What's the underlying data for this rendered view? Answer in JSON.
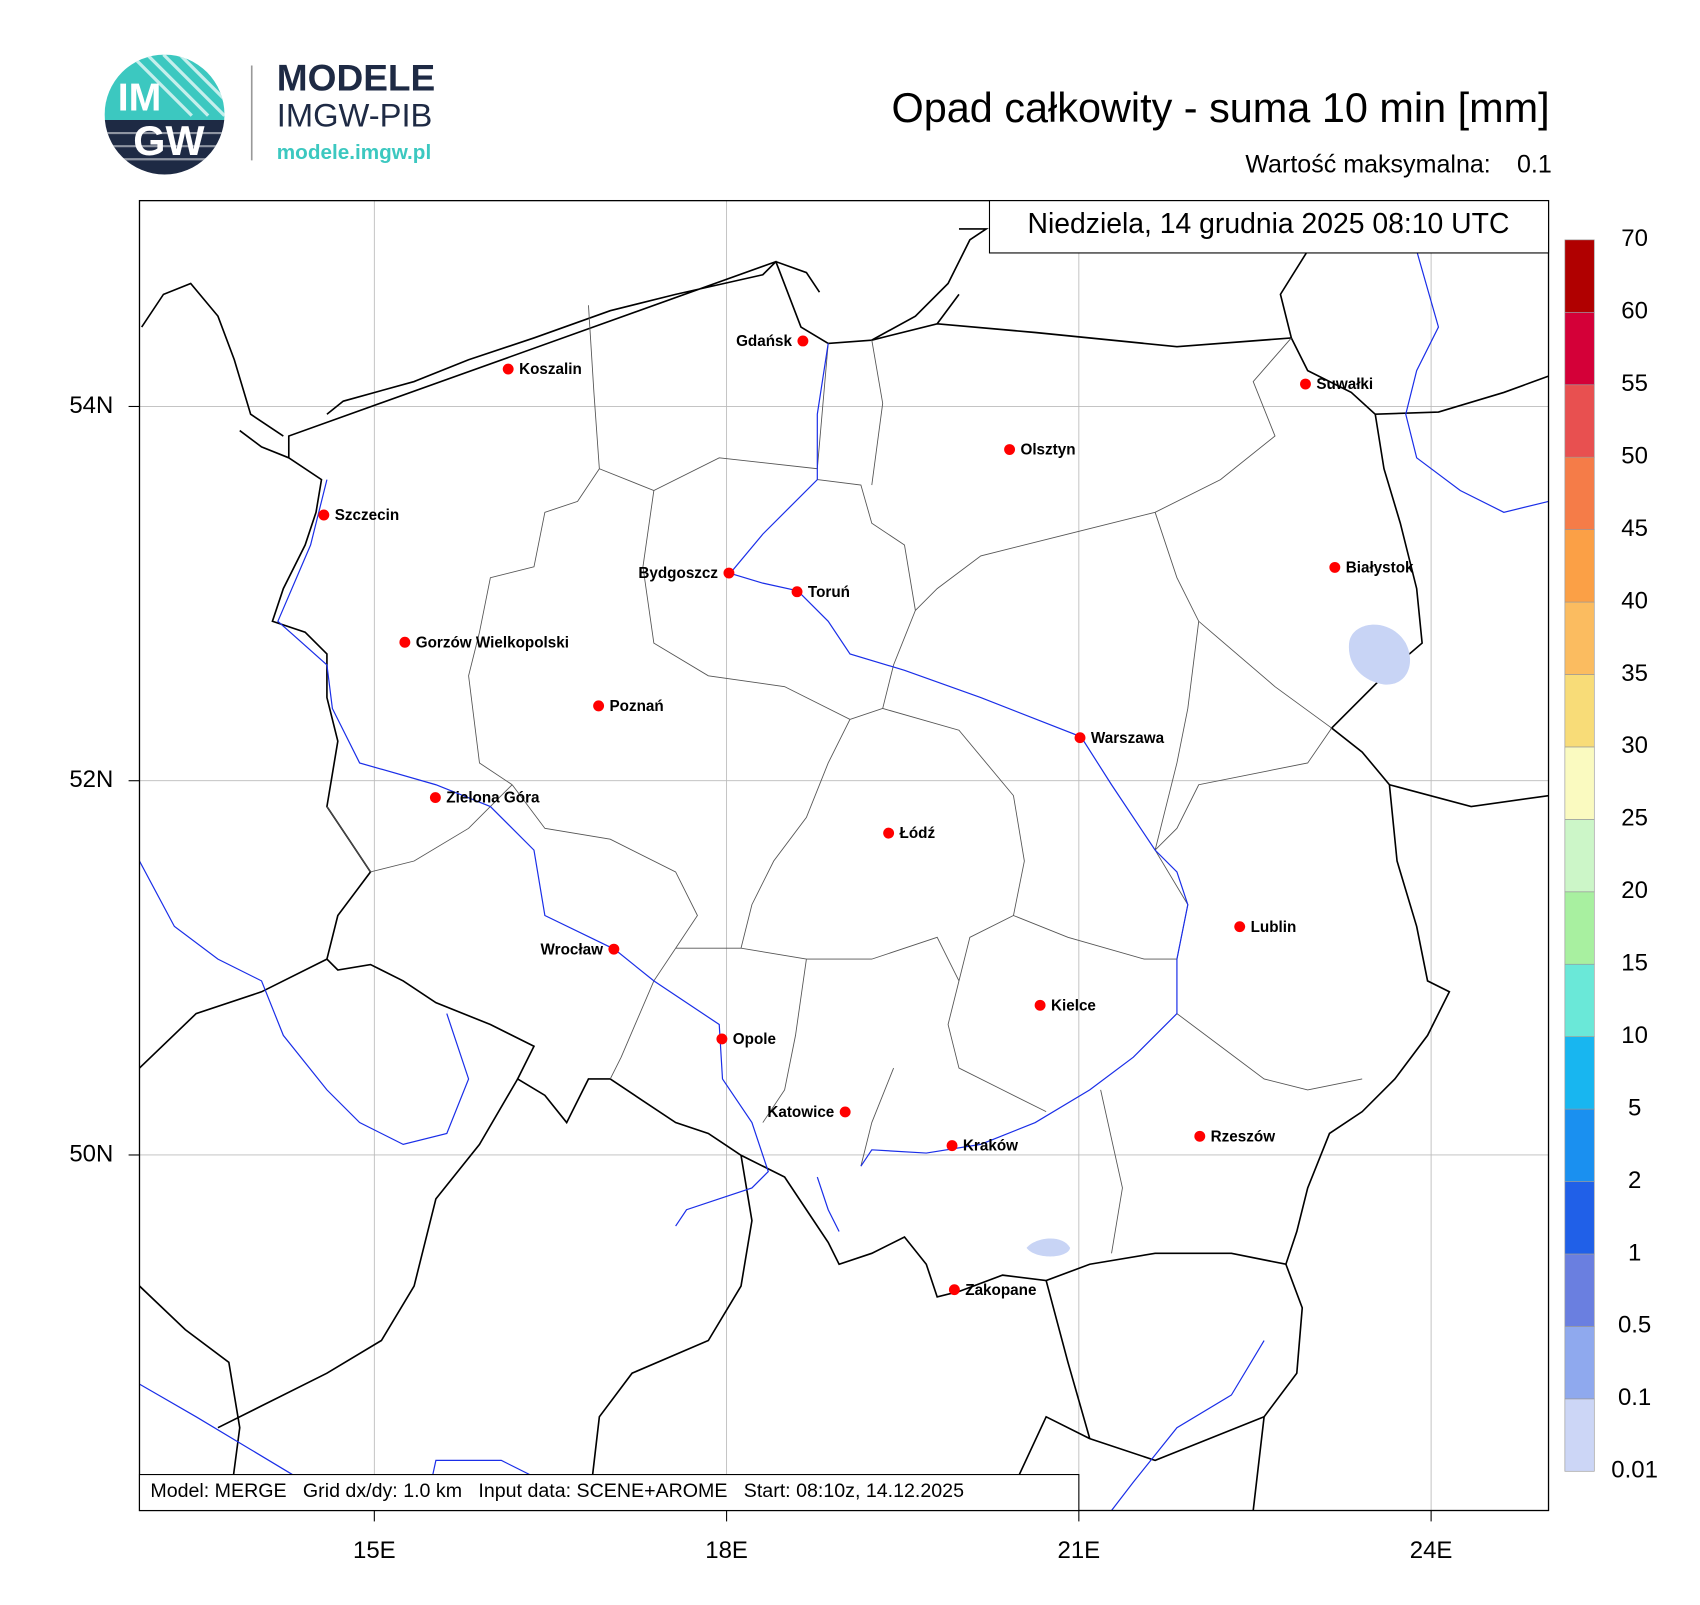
{
  "header": {
    "logo_top": "IM",
    "logo_bottom": "GW",
    "brand": "MODELE",
    "brand_sub": "IMGW-PIB",
    "url": "modele.imgw.pl",
    "title": "Opad całkowity - suma 10 min [mm]",
    "max_label": "Wartość maksymalna:",
    "max_value": 0.1,
    "date": "Niedziela, 14 grudnia 2025 08:10 UTC"
  },
  "map": {
    "xlim": [
      13,
      25
    ],
    "ylim": [
      48.1,
      55.1
    ],
    "xticks": [
      {
        "value": 15,
        "label": "15E"
      },
      {
        "value": 18,
        "label": "18E"
      },
      {
        "value": 21,
        "label": "21E"
      },
      {
        "value": 24,
        "label": "24E"
      }
    ],
    "yticks": [
      {
        "value": 50,
        "label": "50N"
      },
      {
        "value": 52,
        "label": "52N"
      },
      {
        "value": 54,
        "label": "54N"
      }
    ],
    "grid": true,
    "city_color": "#ff0000",
    "cities": [
      {
        "name": "Gdańsk",
        "lon": 18.65,
        "lat": 54.35,
        "side": "left"
      },
      {
        "name": "Koszalin",
        "lon": 16.14,
        "lat": 54.2,
        "side": "right"
      },
      {
        "name": "Suwałki",
        "lon": 22.93,
        "lat": 54.12,
        "side": "right"
      },
      {
        "name": "Olsztyn",
        "lon": 20.41,
        "lat": 53.77,
        "side": "right"
      },
      {
        "name": "Szczecin",
        "lon": 14.57,
        "lat": 53.42,
        "side": "right"
      },
      {
        "name": "Bydgoszcz",
        "lon": 18.02,
        "lat": 53.11,
        "side": "left"
      },
      {
        "name": "Toruń",
        "lon": 18.6,
        "lat": 53.01,
        "side": "right"
      },
      {
        "name": "Białystok",
        "lon": 23.18,
        "lat": 53.14,
        "side": "right"
      },
      {
        "name": "Gorzów Wielkopolski",
        "lon": 15.26,
        "lat": 52.74,
        "side": "right"
      },
      {
        "name": "Poznań",
        "lon": 16.91,
        "lat": 52.4,
        "side": "right"
      },
      {
        "name": "Warszawa",
        "lon": 21.01,
        "lat": 52.23,
        "side": "right"
      },
      {
        "name": "Zielona Góra",
        "lon": 15.52,
        "lat": 51.91,
        "side": "right"
      },
      {
        "name": "Łódź",
        "lon": 19.38,
        "lat": 51.72,
        "side": "right"
      },
      {
        "name": "Lublin",
        "lon": 22.37,
        "lat": 51.22,
        "side": "right"
      },
      {
        "name": "Wrocław",
        "lon": 17.04,
        "lat": 51.1,
        "side": "left"
      },
      {
        "name": "Kielce",
        "lon": 20.67,
        "lat": 50.8,
        "side": "right"
      },
      {
        "name": "Opole",
        "lon": 17.96,
        "lat": 50.62,
        "side": "right"
      },
      {
        "name": "Katowice",
        "lon": 19.01,
        "lat": 50.23,
        "side": "left"
      },
      {
        "name": "Kraków",
        "lon": 19.92,
        "lat": 50.05,
        "side": "right"
      },
      {
        "name": "Rzeszów",
        "lon": 22.03,
        "lat": 50.1,
        "side": "right"
      },
      {
        "name": "Zakopane",
        "lon": 19.94,
        "lat": 49.28,
        "side": "right"
      }
    ],
    "footer": "Model: MERGE   Grid dx/dy: 1.0 km   Input data: SCENE+AROME   Start: 08:10z, 14.12.2025"
  },
  "legend": {
    "levels": [
      0.01,
      0.1,
      0.5,
      1,
      2,
      5,
      10,
      15,
      20,
      25,
      30,
      35,
      40,
      45,
      50,
      55,
      60,
      70
    ],
    "colors": [
      "#ccd6f6",
      "#8fa9ee",
      "#6a7fe0",
      "#2060e8",
      "#1a90f0",
      "#18b6f0",
      "#6ae8d8",
      "#a8f0a0",
      "#ccf6c8",
      "#fafac0",
      "#f8dc78",
      "#fbbc60",
      "#fba046",
      "#f57c48",
      "#e85050",
      "#d40038",
      "#b00000",
      "#800000"
    ]
  }
}
